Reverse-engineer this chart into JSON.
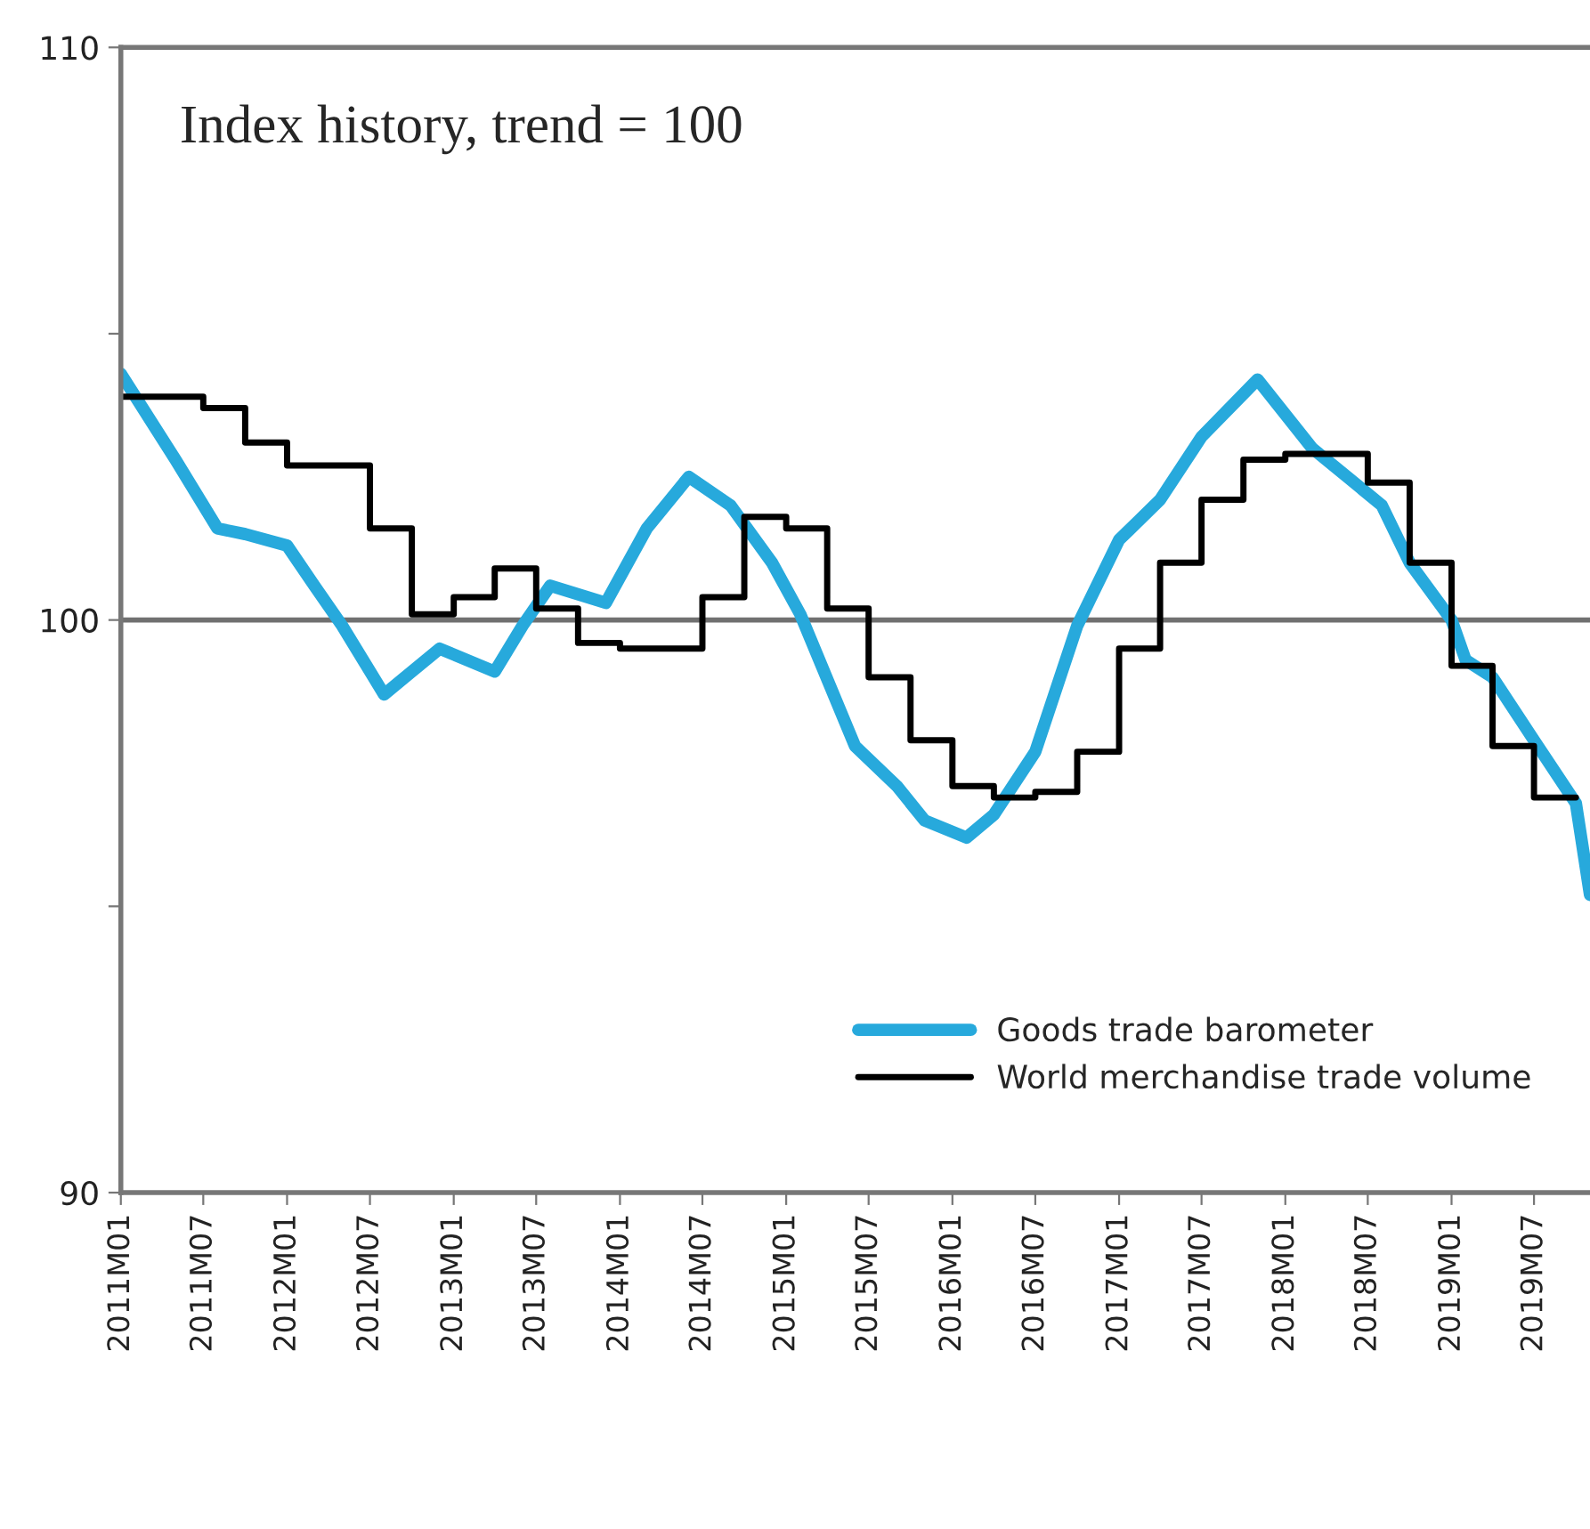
{
  "chart_data": {
    "type": "line",
    "title": "Index history, trend = 100",
    "xlim": [
      "2011-01",
      "2019-11"
    ],
    "ylim": [
      90,
      110
    ],
    "yticks": [
      90,
      {
        "value": 95,
        "label": null
      },
      100,
      {
        "value": 105,
        "label": null
      },
      110
    ],
    "xticks": [
      {
        "value": "2011-01",
        "label": "2011M01"
      },
      {
        "value": "2011-07",
        "label": "2011M07"
      },
      {
        "value": "2012-01",
        "label": "2012M01"
      },
      {
        "value": "2012-07",
        "label": "2012M07"
      },
      {
        "value": "2013-01",
        "label": "2013M01"
      },
      {
        "value": "2013-07",
        "label": "2013M07"
      },
      {
        "value": "2014-01",
        "label": "2014M01"
      },
      {
        "value": "2014-07",
        "label": "2014M07"
      },
      {
        "value": "2015-01",
        "label": "2015M01"
      },
      {
        "value": "2015-07",
        "label": "2015M07"
      },
      {
        "value": "2016-01",
        "label": "2016M01"
      },
      {
        "value": "2016-07",
        "label": "2016M07"
      },
      {
        "value": "2017-01",
        "label": "2017M01"
      },
      {
        "value": "2017-07",
        "label": "2017M07"
      },
      {
        "value": "2018-01",
        "label": "2018M01"
      },
      {
        "value": "2018-07",
        "label": "2018M07"
      },
      {
        "value": "2019-01",
        "label": "2019M01"
      },
      {
        "value": "2019-07",
        "label": "2019M07"
      }
    ],
    "ref_lines": [
      {
        "axis": "y",
        "value": 100,
        "label": null,
        "color": "#707070"
      }
    ],
    "legend": "bottom right",
    "grid": false,
    "series": [
      {
        "name": "Goods trade barometer",
        "color": "#27a9dc",
        "x": [
          "2011-01",
          "2011-05",
          "2011-08",
          "2011-10",
          "2012-01",
          "2012-03",
          "2012-05",
          "2012-08",
          "2012-12",
          "2013-04",
          "2013-06",
          "2013-08",
          "2013-12",
          "2014-03",
          "2014-06",
          "2014-09",
          "2014-12",
          "2015-02",
          "2015-06",
          "2015-09",
          "2015-11",
          "2016-02",
          "2016-04",
          "2016-07",
          "2016-10",
          "2017-01",
          "2017-04",
          "2017-07",
          "2017-11",
          "2018-03",
          "2018-06",
          "2018-08",
          "2018-10",
          "2019-01",
          "2019-02",
          "2019-04",
          "2019-07",
          "2019-10",
          "2019-11"
        ],
        "values": [
          104.3,
          102.8,
          101.6,
          101.5,
          101.3,
          100.6,
          99.9,
          98.7,
          99.5,
          99.1,
          99.9,
          100.6,
          100.3,
          101.6,
          102.5,
          102.0,
          101.0,
          100.1,
          97.8,
          97.1,
          96.5,
          96.2,
          96.6,
          97.7,
          99.9,
          101.4,
          102.1,
          103.2,
          104.2,
          103.0,
          102.4,
          102.0,
          101.0,
          100.0,
          99.3,
          99.0,
          97.9,
          96.8,
          95.2
        ]
      },
      {
        "name": "World merchandise trade volume",
        "color": "#000000",
        "type": "step",
        "x": [
          "2011-01",
          "2011-04",
          "2011-07",
          "2011-10",
          "2012-01",
          "2012-04",
          "2012-07",
          "2012-10",
          "2013-01",
          "2013-04",
          "2013-07",
          "2013-10",
          "2014-01",
          "2014-04",
          "2014-07",
          "2014-10",
          "2015-01",
          "2015-04",
          "2015-07",
          "2015-10",
          "2016-01",
          "2016-04",
          "2016-07",
          "2016-10",
          "2017-01",
          "2017-04",
          "2017-07",
          "2017-10",
          "2018-01",
          "2018-04",
          "2018-07",
          "2018-10",
          "2019-01",
          "2019-04",
          "2019-07",
          "2019-10"
        ],
        "values": [
          103.9,
          103.9,
          103.7,
          103.1,
          102.7,
          102.7,
          101.6,
          100.1,
          100.4,
          100.9,
          100.2,
          99.6,
          99.5,
          99.5,
          100.4,
          101.8,
          101.6,
          100.2,
          99.0,
          97.9,
          97.1,
          96.9,
          97.0,
          97.7,
          99.5,
          101.0,
          102.1,
          102.8,
          102.9,
          102.9,
          102.4,
          101.0,
          99.2,
          97.8,
          96.9,
          96.9
        ]
      }
    ]
  }
}
